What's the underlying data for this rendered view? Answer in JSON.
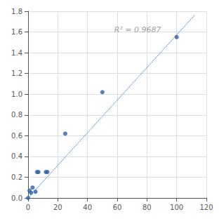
{
  "chart_data": {
    "type": "scatter",
    "series": [
      {
        "type": "line",
        "line_style": "dotted",
        "color": "#5a8ec5",
        "x": [
          0,
          112
        ],
        "values": [
          0.0,
          1.76
        ]
      },
      {
        "type": "scatter",
        "color": "#2e5fa3",
        "x": [
          0,
          1,
          2,
          3,
          5,
          6,
          7,
          12,
          13,
          25,
          50,
          100
        ],
        "values": [
          0.0,
          0.07,
          0.05,
          0.1,
          0.06,
          0.25,
          0.25,
          0.25,
          0.25,
          0.62,
          1.02,
          1.55
        ]
      }
    ],
    "annotations": [
      {
        "text": "R² = 0.9687",
        "x": 58,
        "y": 1.62,
        "color": "#888888"
      }
    ],
    "xlim": [
      0,
      120
    ],
    "ylim": [
      0,
      1.8
    ],
    "xticks": [
      0,
      20,
      40,
      60,
      80,
      100,
      120
    ],
    "yticks": [
      {
        "value": 0,
        "label": "0.0"
      },
      0.2,
      0.4,
      0.6,
      0.8,
      {
        "value": 1,
        "label": "1.0"
      },
      1.2,
      1.4,
      1.6,
      1.8
    ],
    "grid": true
  }
}
